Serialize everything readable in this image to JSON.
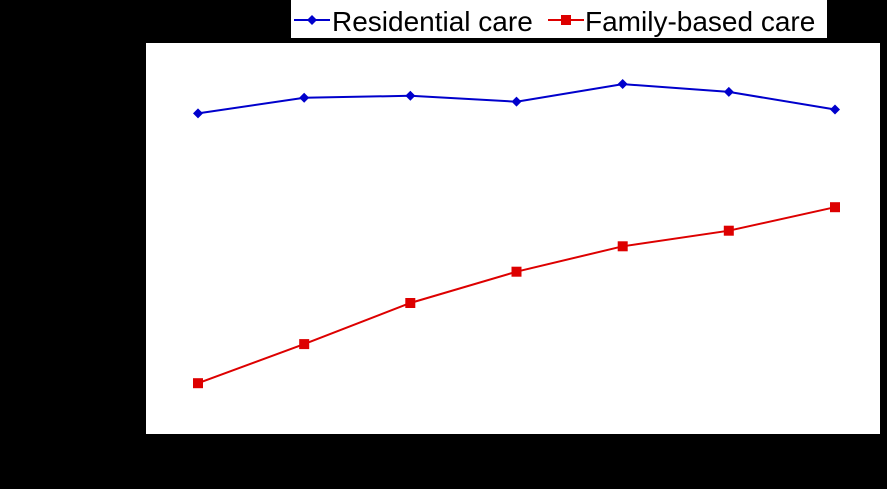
{
  "chart_data": {
    "type": "line",
    "categories": [
      "",
      "",
      "",
      "",
      "",
      "",
      ""
    ],
    "series": [
      {
        "name": "Residential care",
        "color": "#0000CC",
        "marker": "diamond",
        "values": [
          8.2,
          8.6,
          8.65,
          8.5,
          8.95,
          8.75,
          8.3
        ]
      },
      {
        "name": "Family-based care",
        "color": "#DD0000",
        "marker": "square",
        "values": [
          1.3,
          2.3,
          3.35,
          4.15,
          4.8,
          5.2,
          5.8
        ]
      }
    ],
    "ylim": [
      0,
      10
    ],
    "grid": false,
    "legend_position": "top-right",
    "title": "",
    "xlabel": "",
    "ylabel": ""
  }
}
